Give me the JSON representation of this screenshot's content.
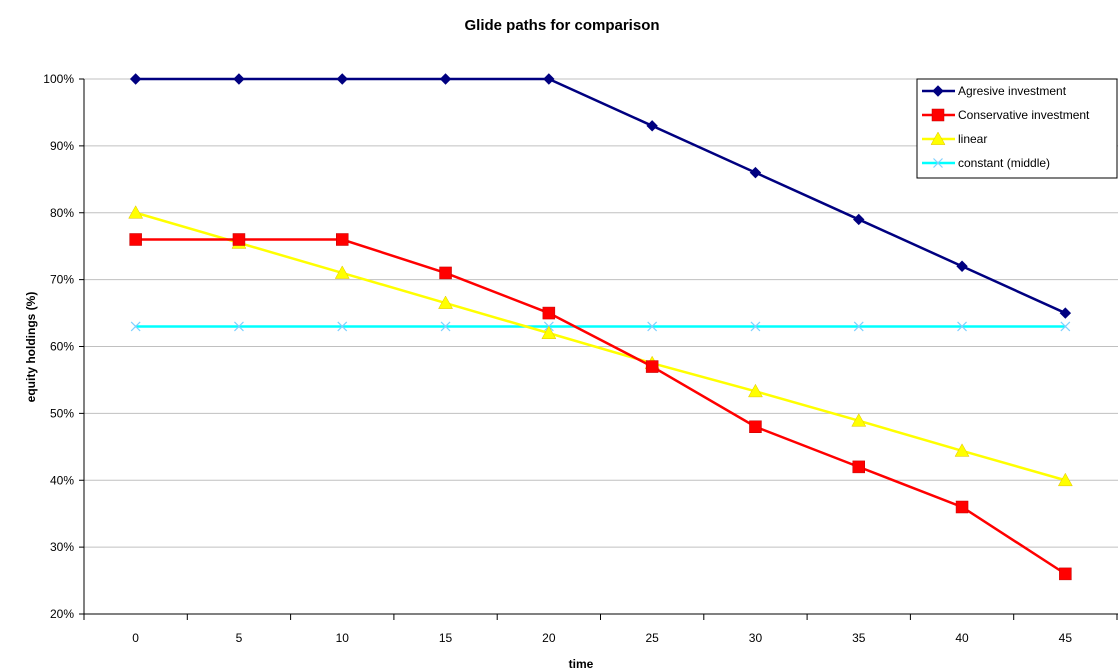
{
  "chart_data": {
    "type": "line",
    "title": "Glide paths for comparison",
    "xlabel": "time",
    "ylabel": "equity holdings (%)",
    "x": [
      0,
      5,
      10,
      15,
      20,
      25,
      30,
      35,
      40,
      45
    ],
    "ylim": [
      20,
      100
    ],
    "yticks": [
      20,
      30,
      40,
      50,
      60,
      70,
      80,
      90,
      100
    ],
    "ytick_labels": [
      "20%",
      "30%",
      "40%",
      "50%",
      "60%",
      "70%",
      "80%",
      "90%",
      "100%"
    ],
    "grid": "horizontal",
    "legend_position": "top-right",
    "series": [
      {
        "name": "Agresive investment",
        "color": "#000080",
        "marker": "diamond",
        "values": [
          100,
          100,
          100,
          100,
          100,
          93,
          86,
          79,
          72,
          65
        ]
      },
      {
        "name": "Conservative investment",
        "color": "#ff0000",
        "marker": "square",
        "values": [
          76,
          76,
          76,
          71,
          65,
          57,
          48,
          42,
          36,
          26
        ]
      },
      {
        "name": "linear",
        "color": "#ffff00",
        "marker": "triangle",
        "values": [
          80,
          75.5,
          71,
          66.5,
          62,
          57.5,
          53.3,
          48.9,
          44.4,
          40
        ]
      },
      {
        "name": "constant (middle)",
        "color": "#00ffff",
        "marker": "x",
        "values": [
          63,
          63,
          63,
          63,
          63,
          63,
          63,
          63,
          63,
          63
        ]
      }
    ]
  }
}
